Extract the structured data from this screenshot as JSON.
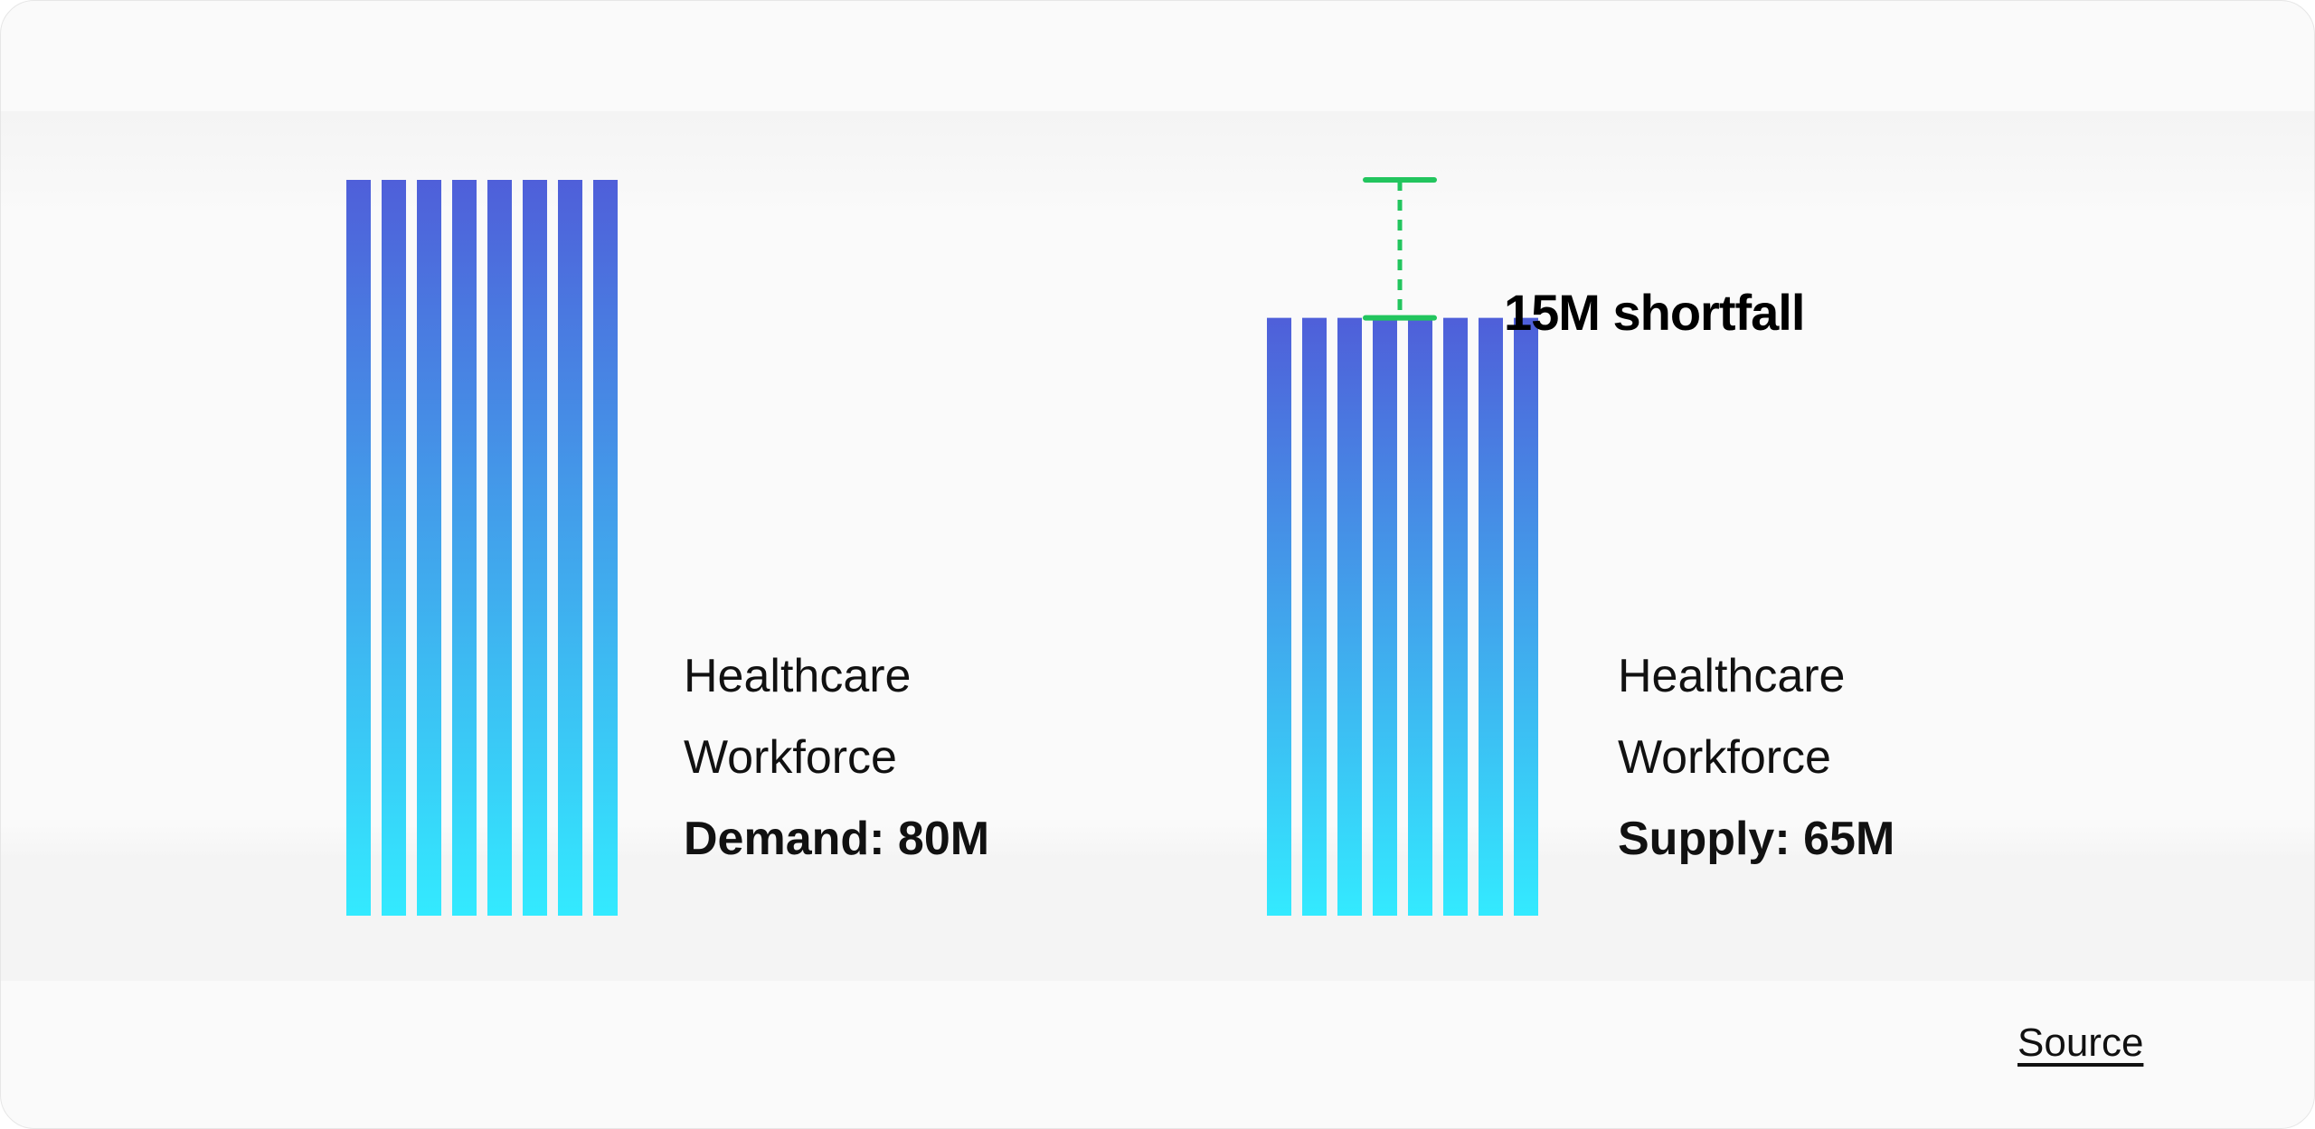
{
  "chart_data": {
    "type": "bar",
    "categories": [
      "Healthcare Workforce Demand: 80M",
      "Healthcare Workforce Supply: 65M"
    ],
    "values": [
      80,
      65
    ],
    "ylim": [
      0,
      80
    ],
    "grid": false,
    "bars": [
      {
        "label_lines": [
          "Healthcare",
          "Workforce"
        ],
        "value_label": "Demand: 80M",
        "value": 80
      },
      {
        "label_lines": [
          "Healthcare",
          "Workforce"
        ],
        "value_label": "Supply: 65M",
        "value": 65
      }
    ],
    "annotation": {
      "text": "15M shortfall",
      "from": 65,
      "to": 80
    }
  },
  "footer": {
    "source_label": "Source"
  },
  "colors": {
    "bar_top": "#4f5fd9",
    "bar_bottom": "#33eaff",
    "gap_line": "#22c55e",
    "background": "#fafafa"
  }
}
